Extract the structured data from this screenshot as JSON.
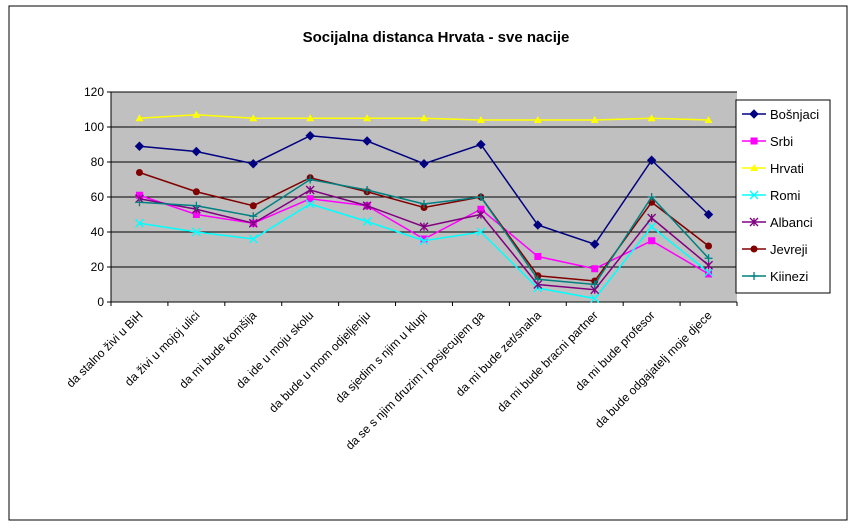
{
  "chart_data": {
    "type": "line",
    "title": "Socijalna distanca Hrvata - sve nacije",
    "categories": [
      "da stalno živi u BiH",
      "da živi u mojoj ulici",
      "da mi bude komšija",
      "da ide u moju skolu",
      "da bude u mom odjeljenju",
      "da sjedim s njim u klupi",
      "da se s njim druzim i posjecujem ga",
      "da mi bude zet/snaha",
      "da mi bude bracni partner",
      "da mi bude profesor",
      "da bude odgajatelj moje djece"
    ],
    "series": [
      {
        "name": "Bošnjaci",
        "color": "#000080",
        "marker": "diamond",
        "values": [
          89,
          86,
          79,
          95,
          92,
          79,
          90,
          44,
          33,
          81,
          50
        ]
      },
      {
        "name": "Srbi",
        "color": "#ff00ff",
        "marker": "square",
        "values": [
          61,
          50,
          45,
          59,
          55,
          36,
          53,
          26,
          19,
          35,
          16
        ]
      },
      {
        "name": "Hrvati",
        "color": "#ffff00",
        "marker": "triangle",
        "values": [
          105,
          107,
          105,
          105,
          105,
          105,
          104,
          104,
          104,
          105,
          104
        ]
      },
      {
        "name": "Romi",
        "color": "#00ffff",
        "marker": "x",
        "values": [
          45,
          40,
          36,
          56,
          46,
          35,
          40,
          8,
          2,
          43,
          17
        ]
      },
      {
        "name": "Albanci",
        "color": "#800080",
        "marker": "star",
        "values": [
          59,
          53,
          45,
          64,
          55,
          43,
          50,
          10,
          7,
          48,
          21
        ]
      },
      {
        "name": "Jevreji",
        "color": "#800000",
        "marker": "circle",
        "values": [
          74,
          63,
          55,
          71,
          63,
          54,
          60,
          15,
          12,
          57,
          32
        ]
      },
      {
        "name": "Kiinezi",
        "color": "#008080",
        "marker": "plus",
        "values": [
          57,
          55,
          49,
          70,
          64,
          56,
          60,
          13,
          10,
          60,
          25
        ]
      }
    ],
    "ylim": [
      0,
      120
    ],
    "yticks": [
      0,
      20,
      40,
      60,
      80,
      100,
      120
    ],
    "grid": true,
    "legend": "right"
  }
}
